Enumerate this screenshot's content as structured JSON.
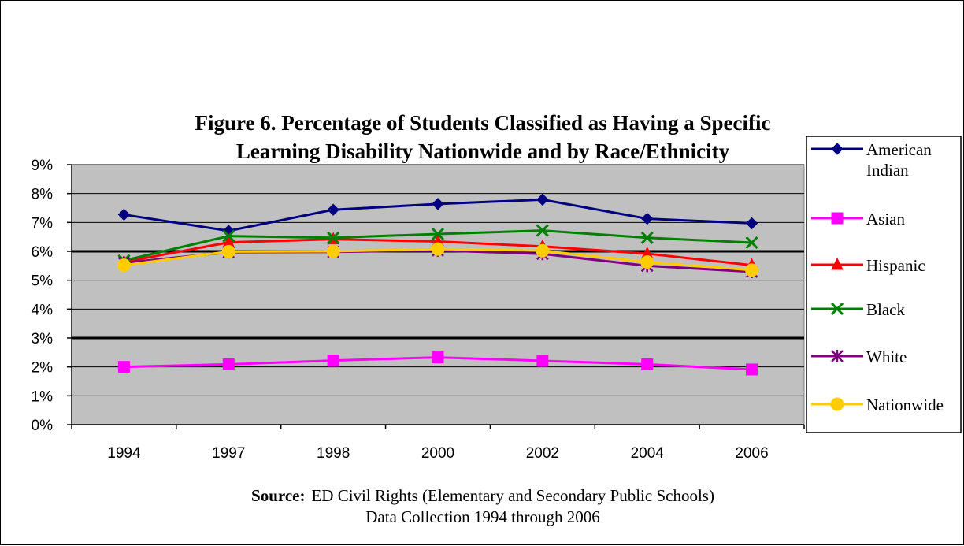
{
  "chart_data": {
    "type": "line",
    "title_lines": [
      "Figure 6. Percentage of Students Classified as Having a Specific",
      "Learning Disability Nationwide and by Race/Ethnicity"
    ],
    "categories": [
      "1994",
      "1997",
      "1998",
      "2000",
      "2002",
      "2004",
      "2006"
    ],
    "y_ticks": [
      "0%",
      "1%",
      "2%",
      "3%",
      "4%",
      "5%",
      "6%",
      "7%",
      "8%",
      "9%"
    ],
    "ylim": [
      0,
      9
    ],
    "y_unit": "%",
    "grid": true,
    "major_gridlines": [
      3,
      6
    ],
    "legend_placement": "right",
    "plot_background": "#c0c0c0",
    "series": [
      {
        "name_lines": [
          "American",
          "Indian"
        ],
        "values": [
          7.27,
          6.71,
          7.44,
          7.64,
          7.79,
          7.13,
          6.97
        ],
        "color": "#000080",
        "marker": "diamond"
      },
      {
        "name_lines": [
          "Asian"
        ],
        "values": [
          2.0,
          2.09,
          2.22,
          2.33,
          2.21,
          2.09,
          1.91
        ],
        "color": "#ff00ff",
        "marker": "square"
      },
      {
        "name_lines": [
          "Hispanic"
        ],
        "values": [
          5.63,
          6.31,
          6.42,
          6.34,
          6.17,
          5.92,
          5.52
        ],
        "color": "#ff0000",
        "marker": "triangle"
      },
      {
        "name_lines": [
          "Black"
        ],
        "values": [
          5.68,
          6.53,
          6.47,
          6.6,
          6.72,
          6.47,
          6.3
        ],
        "color": "#008000",
        "marker": "x"
      },
      {
        "name_lines": [
          "White"
        ],
        "values": [
          5.6,
          5.97,
          5.98,
          6.03,
          5.91,
          5.5,
          5.29
        ],
        "color": "#800080",
        "marker": "star"
      },
      {
        "name_lines": [
          "Nationwide"
        ],
        "values": [
          5.52,
          5.99,
          6.0,
          6.08,
          6.02,
          5.63,
          5.35
        ],
        "color": "#ffcc00",
        "marker": "circle"
      }
    ],
    "source_label": "Source:",
    "source_lines": [
      "ED Civil Rights (Elementary and Secondary Public Schools)",
      "Data Collection 1994 through 2006"
    ]
  }
}
